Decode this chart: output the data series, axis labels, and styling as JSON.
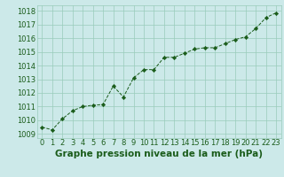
{
  "x": [
    0,
    1,
    2,
    3,
    4,
    5,
    6,
    7,
    8,
    9,
    10,
    11,
    12,
    13,
    14,
    15,
    16,
    17,
    18,
    19,
    20,
    21,
    22,
    23
  ],
  "y": [
    1009.5,
    1009.3,
    1010.1,
    1010.7,
    1011.0,
    1011.1,
    1011.15,
    1012.5,
    1011.7,
    1013.1,
    1013.7,
    1013.7,
    1014.6,
    1014.6,
    1014.9,
    1015.2,
    1015.3,
    1015.3,
    1015.6,
    1015.9,
    1016.1,
    1016.7,
    1017.5,
    1017.85
  ],
  "line_color": "#1a5c1a",
  "marker": "D",
  "marker_size": 2.2,
  "bg_color": "#cce9e9",
  "grid_color": "#99ccbb",
  "xlabel": "Graphe pression niveau de la mer (hPa)",
  "xlabel_fontsize": 7.5,
  "xlabel_color": "#1a5c1a",
  "yticks": [
    1009,
    1010,
    1011,
    1012,
    1013,
    1014,
    1015,
    1016,
    1017,
    1018
  ],
  "xticks": [
    0,
    1,
    2,
    3,
    4,
    5,
    6,
    7,
    8,
    9,
    10,
    11,
    12,
    13,
    14,
    15,
    16,
    17,
    18,
    19,
    20,
    21,
    22,
    23
  ],
  "ylim": [
    1008.7,
    1018.4
  ],
  "xlim": [
    -0.5,
    23.5
  ],
  "tick_fontsize": 6.0,
  "tick_color": "#1a5c1a",
  "linewidth": 0.7
}
